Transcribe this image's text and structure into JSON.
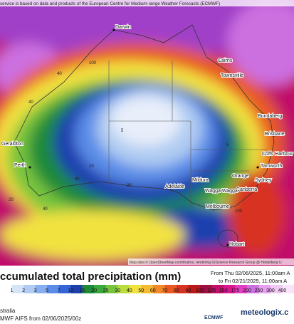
{
  "header": {
    "credit": "service is based on data and products of the European Centre for Medium-range Weather Forecasts (ECMWF)"
  },
  "map": {
    "cities": [
      "Darwin",
      "Cairns",
      "Townsville",
      "Bundaberg",
      "Brisbane",
      "Coffs Harbour",
      "Tamworth",
      "Orange",
      "Sydney",
      "Canberra",
      "Wagga Wagga",
      "Mildura",
      "Adelaide",
      "Melbourne",
      "Hobart",
      "Perth",
      "Geraldton"
    ],
    "contour_labels": [
      "100",
      "40",
      "5",
      "40",
      "20",
      "40",
      "10",
      "5",
      "40",
      "100",
      "20"
    ],
    "attribution": "Map data © OpenStreetMap contributors, rendering GIScience Research Group @ Heidelberg U"
  },
  "title": {
    "text": "ccumulated total precipitation (mm)",
    "from": "From Thu 02/06/2025, 11:00am A",
    "to": "to Fri 02/21/2025, 11:00am A"
  },
  "legend": {
    "labels": [
      "1",
      "2",
      "3",
      "5",
      "7",
      "10",
      "15",
      "20",
      "25",
      "30",
      "40",
      "50",
      "60",
      "70",
      "80",
      "90",
      "100",
      "125",
      "150",
      "175",
      "200",
      "250",
      "300",
      "400"
    ],
    "colors": [
      "#ffffff",
      "#d6e4f7",
      "#b0ccf2",
      "#86aef0",
      "#5a8ce8",
      "#3465d6",
      "#1e3fae",
      "#1f8a3a",
      "#3aa83c",
      "#78c43e",
      "#badc3e",
      "#f2e240",
      "#f5ba32",
      "#f08a2a",
      "#e85a22",
      "#d83222",
      "#b81a1a",
      "#9e1040",
      "#c0106a",
      "#d81890",
      "#e040c0",
      "#cc70e0",
      "#e6a0f0",
      "#f2c8f5",
      "#fbe4fb"
    ]
  },
  "footer": {
    "region": "stralia",
    "model": "MWF AIFS from 02/06/2025/00z",
    "logo": "ECMWF",
    "brand": "meteologix.c"
  }
}
